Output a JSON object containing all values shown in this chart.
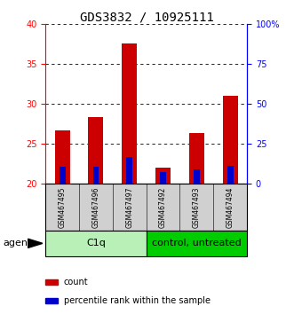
{
  "title": "GDS3832 / 10925111",
  "categories": [
    "GSM467495",
    "GSM467496",
    "GSM467497",
    "GSM467492",
    "GSM467493",
    "GSM467494"
  ],
  "count_values": [
    26.7,
    28.3,
    37.5,
    22.0,
    26.3,
    31.0
  ],
  "percentile_values": [
    22.1,
    22.1,
    23.3,
    21.5,
    21.8,
    22.2
  ],
  "ylim_left": [
    20,
    40
  ],
  "ylim_right": [
    0,
    100
  ],
  "yticks_left": [
    20,
    25,
    30,
    35,
    40
  ],
  "yticks_right": [
    0,
    25,
    50,
    75,
    100
  ],
  "ytick_labels_right": [
    "0",
    "25",
    "50",
    "75",
    "100%"
  ],
  "bar_color": "#cc0000",
  "percentile_color": "#0000cc",
  "bar_width": 0.45,
  "percentile_bar_width": 0.18,
  "group0_label": "C1q",
  "group1_label": "control, untreated",
  "group0_color": "#b8f0b8",
  "group1_color": "#00cc00",
  "agent_label": "agent",
  "legend_count_label": "count",
  "legend_perc_label": "percentile rank within the sample",
  "count_color": "#cc0000",
  "perc_color": "#0000cc",
  "title_fontsize": 10,
  "tick_fontsize": 7,
  "cat_fontsize": 5.5,
  "group_fontsize": 8,
  "legend_fontsize": 7,
  "agent_fontsize": 8,
  "bg_label": "#d0d0d0",
  "bg_plot": "#ffffff"
}
